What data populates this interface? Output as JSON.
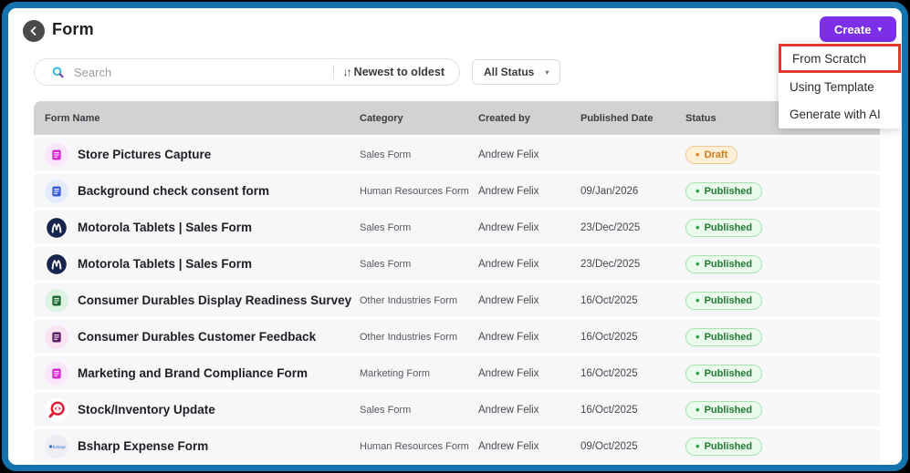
{
  "colors": {
    "frame_blue": "#1473ad",
    "accent_purple": "#7c2fe8",
    "highlight_red": "#e03a2e",
    "header_gray": "#d2d2d4",
    "row_bg": "#f7f7fa"
  },
  "header": {
    "title": "Form",
    "create_button": {
      "label": "Create",
      "caret": "▾"
    }
  },
  "create_menu": {
    "items": [
      {
        "label": "From Scratch",
        "highlighted": true
      },
      {
        "label": "Using Template",
        "highlighted": false
      },
      {
        "label": "Generate with AI",
        "highlighted": false
      }
    ]
  },
  "toolbar": {
    "search_placeholder": "Search",
    "sort_icon": "↓↑",
    "sort_label": "Newest to oldest",
    "status_filter": {
      "label": "All Status",
      "caret": "▾"
    }
  },
  "table": {
    "columns": [
      "Form Name",
      "Category",
      "Created by",
      "Published Date",
      "Status"
    ],
    "statuses": {
      "Draft": {
        "bg": "#fdf0d6",
        "border": "#f2c894",
        "text": "#cf7a1e",
        "dot": "#e0872e"
      },
      "Published": {
        "bg": "#eafaec",
        "border": "#a6e3af",
        "text": "#217a33",
        "dot": "#2fa14a"
      }
    },
    "rows": [
      {
        "name": "Store Pictures Capture",
        "category": "Sales Form",
        "created_by": "Andrew Felix",
        "published_date": "",
        "status": "Draft",
        "icon": {
          "type": "doc",
          "name": "pink-doc-icon",
          "bg": "#fbe7fb",
          "fg": "#d926d9"
        }
      },
      {
        "name": "Background check consent form",
        "category": "Human Resources Form",
        "created_by": "Andrew Felix",
        "published_date": "09/Jan/2026",
        "status": "Published",
        "icon": {
          "type": "doc",
          "name": "blue-doc-icon",
          "bg": "#e3ebfc",
          "fg": "#3b5bdb"
        }
      },
      {
        "name": "Motorola Tablets | Sales Form",
        "category": "Sales Form",
        "created_by": "Andrew Felix",
        "published_date": "23/Dec/2025",
        "status": "Published",
        "icon": {
          "type": "motorola",
          "name": "motorola-logo-icon",
          "bg": "#ffffff",
          "fg": "#16254e"
        }
      },
      {
        "name": "Motorola Tablets | Sales Form",
        "category": "Sales Form",
        "created_by": "Andrew Felix",
        "published_date": "23/Dec/2025",
        "status": "Published",
        "icon": {
          "type": "motorola",
          "name": "motorola-logo-icon",
          "bg": "#ffffff",
          "fg": "#16254e"
        }
      },
      {
        "name": "Consumer Durables Display Readiness Survey",
        "category": "Other Industries Form",
        "created_by": "Andrew Felix",
        "published_date": "16/Oct/2025",
        "status": "Published",
        "icon": {
          "type": "doc",
          "name": "green-doc-icon",
          "bg": "#ddf3e2",
          "fg": "#1d6b34"
        }
      },
      {
        "name": "Consumer Durables Customer Feedback",
        "category": "Other Industries Form",
        "created_by": "Andrew Felix",
        "published_date": "16/Oct/2025",
        "status": "Published",
        "icon": {
          "type": "doc",
          "name": "purple-doc-icon",
          "bg": "#fae4f2",
          "fg": "#5b1b63"
        }
      },
      {
        "name": "Marketing and Brand Compliance Form",
        "category": "Marketing Form",
        "created_by": "Andrew Felix",
        "published_date": "16/Oct/2025",
        "status": "Published",
        "icon": {
          "type": "doc",
          "name": "magenta-doc-icon",
          "bg": "#fbe7fb",
          "fg": "#d926d9"
        }
      },
      {
        "name": "Stock/Inventory Update",
        "category": "Sales Form",
        "created_by": "Andrew Felix",
        "published_date": "16/Oct/2025",
        "status": "Published",
        "icon": {
          "type": "stock-eye",
          "name": "stock-eye-logo-icon",
          "bg": "#ffffff",
          "fg": "#e11931"
        }
      },
      {
        "name": "Bsharp Expense Form",
        "category": "Human Resources Form",
        "created_by": "Andrew Felix",
        "published_date": "09/Oct/2025",
        "status": "Published",
        "icon": {
          "type": "bsharp",
          "name": "bsharp-logo-icon",
          "bg": "#eeeef2",
          "fg": "#2a6fd6"
        }
      }
    ]
  }
}
